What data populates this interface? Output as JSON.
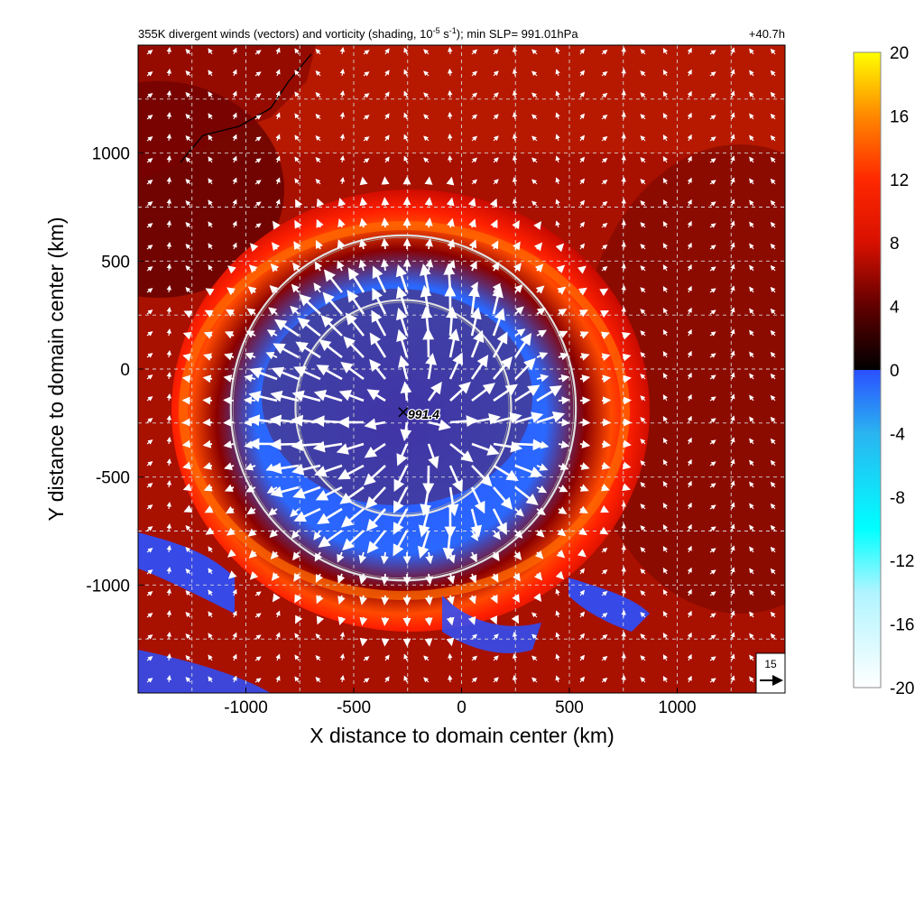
{
  "chart_data": {
    "type": "heatmap",
    "title": "355K divergent winds (vectors) and vorticity (shading, 10",
    "title_exp": "-5",
    "title_mid": " s",
    "title_exp2": "-1",
    "title_tail": "); min SLP= 991.01hPa",
    "forecast_time": "+40.7h",
    "xlabel": "X distance to domain center (km)",
    "ylabel": "Y distance to domain center (km)",
    "xlim": [
      -1500,
      1500
    ],
    "ylim": [
      -1500,
      1500
    ],
    "x_ticks": [
      -1000,
      -500,
      0,
      500,
      1000
    ],
    "y_ticks": [
      -1000,
      -500,
      0,
      500,
      1000
    ],
    "x_tick_labels": [
      "-1000",
      "-500",
      "0",
      "500",
      "1000"
    ],
    "y_tick_labels": [
      "-1000",
      "-500",
      "0",
      "500",
      "1000"
    ],
    "grid": true,
    "colorbar": {
      "ticks": [
        20,
        16,
        12,
        8,
        4,
        0,
        -4,
        -8,
        -12,
        -16,
        -20
      ],
      "tick_labels": [
        "20",
        "16",
        "12",
        "8",
        "4",
        "0",
        "-4",
        "-8",
        "-12",
        "-16",
        "-20"
      ],
      "range": [
        -20,
        20
      ],
      "stops": [
        {
          "v": -20,
          "c": "#ffffff"
        },
        {
          "v": -14,
          "c": "#b0f4ff"
        },
        {
          "v": -10,
          "c": "#00ffff"
        },
        {
          "v": -4,
          "c": "#2ab4f0"
        },
        {
          "v": 0,
          "c": "#2a50ff"
        },
        {
          "v": 0.001,
          "c": "#000000"
        },
        {
          "v": 4,
          "c": "#600000"
        },
        {
          "v": 8,
          "c": "#d81000"
        },
        {
          "v": 12,
          "c": "#ff2800"
        },
        {
          "v": 16,
          "c": "#ff8800"
        },
        {
          "v": 20,
          "c": "#ffff00"
        }
      ]
    },
    "center_marker": {
      "x": -270,
      "y": -200,
      "label": "991.4"
    },
    "circles": [
      {
        "cx": -270,
        "cy": -180,
        "r": 500
      },
      {
        "cx": -270,
        "cy": -180,
        "r": 800
      }
    ],
    "reference_vector": {
      "label": "15",
      "magnitude": 15
    }
  }
}
